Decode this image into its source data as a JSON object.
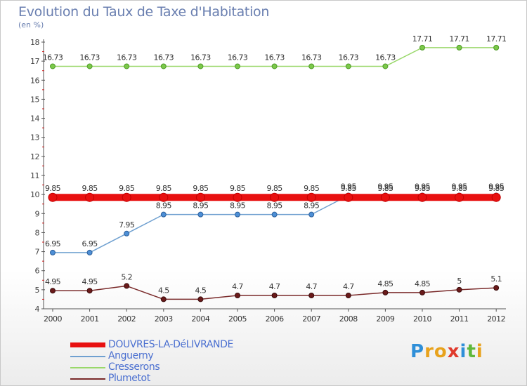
{
  "page": {
    "title": "Evolution du Taux de Taxe d'Habitation",
    "unit": "(en %)"
  },
  "logo": {
    "text": "Proxiti",
    "letters": [
      "P",
      "r",
      "o",
      "x",
      "i",
      "t",
      "i"
    ],
    "colors": [
      "#2f8fd8",
      "#e8a21c",
      "#e8a21c",
      "#e03a2c",
      "#2f8fd8",
      "#5fb83b",
      "#e8a21c"
    ]
  },
  "chart_data": {
    "type": "line",
    "title": "Evolution du Taux de Taxe d'Habitation",
    "ylabel": "(en %)",
    "xlabel": "",
    "ylim": [
      4,
      18
    ],
    "yticks": [
      4,
      5,
      6,
      7,
      8,
      9,
      10,
      11,
      12,
      13,
      14,
      15,
      16,
      17,
      18
    ],
    "grid": false,
    "legend_position": "bottom-left",
    "x": [
      "2000",
      "2001",
      "2002",
      "2003",
      "2004",
      "2005",
      "2006",
      "2007",
      "2008",
      "2009",
      "2010",
      "2011",
      "2012"
    ],
    "series": [
      {
        "name": "DOUVRES-LA-DéLIVRANDE",
        "color": "#e81010",
        "values": [
          9.85,
          9.85,
          9.85,
          9.85,
          9.85,
          9.85,
          9.85,
          9.85,
          9.85,
          9.85,
          9.85,
          9.85,
          9.85
        ],
        "labels": [
          "9.85",
          "9.85",
          "9.85",
          "9.85",
          "9.85",
          "9.85",
          "9.85",
          "9.85",
          "9.85",
          "9.85",
          "9.85",
          "9.85",
          "9.85"
        ]
      },
      {
        "name": "Anguerny",
        "color": "#6fa0d0",
        "values": [
          6.95,
          6.95,
          7.95,
          8.95,
          8.95,
          8.95,
          8.95,
          8.95,
          9.95,
          9.95,
          9.95,
          9.95,
          9.95
        ],
        "labels": [
          "6.95",
          "6.95",
          "7.95",
          "8.95",
          "8.95",
          "8.95",
          "8.95",
          "8.95",
          "9.95",
          "9.95",
          "9.95",
          "9.95",
          "9.95"
        ]
      },
      {
        "name": "Cresserons",
        "color": "#99d86a",
        "values": [
          16.73,
          16.73,
          16.73,
          16.73,
          16.73,
          16.73,
          16.73,
          16.73,
          16.73,
          16.73,
          17.71,
          17.71,
          17.71
        ],
        "labels": [
          "16.73",
          "16.73",
          "16.73",
          "16.73",
          "16.73",
          "16.73",
          "16.73",
          "16.73",
          "16.73",
          "16.73",
          "17.71",
          "17.71",
          "17.71"
        ]
      },
      {
        "name": "Plumetot",
        "color": "#7a2a2a",
        "values": [
          4.95,
          4.95,
          5.2,
          4.5,
          4.5,
          4.7,
          4.7,
          4.7,
          4.7,
          4.85,
          4.85,
          5.0,
          5.1
        ],
        "labels": [
          "4.95",
          "4.95",
          "5.2",
          "4.5",
          "4.5",
          "4.7",
          "4.7",
          "4.7",
          "4.7",
          "4.85",
          "4.85",
          "5",
          "5.1"
        ]
      }
    ]
  }
}
